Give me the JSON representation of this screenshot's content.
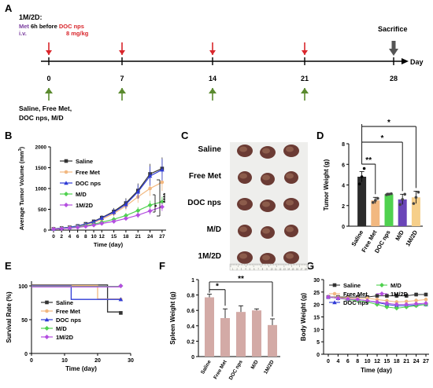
{
  "panel_labels": [
    "A",
    "B",
    "C",
    "D",
    "E",
    "F",
    "G"
  ],
  "timeline": {
    "regimen": "1M/2D:",
    "met": "Met",
    "before": "6h before",
    "doc": "DOC nps",
    "route": "i.v.",
    "dose": "8 mg/kg",
    "sacrifice": "Sacrifice",
    "axis_label": "Day",
    "days": [
      "0",
      "7",
      "14",
      "21",
      "28"
    ],
    "groups_line1": "Saline, Free Met,",
    "groups_line2": "DOC nps, M/D",
    "colors": {
      "injection": "#d9262c",
      "dosing": "#5a8a2e",
      "sacrifice": "#555555",
      "met": "#7b3fa0",
      "doc": "#d9262c"
    }
  },
  "series_colors": {
    "Saline": "#333333",
    "Free Met": "#f2b880",
    "DOC nps": "#2f3bd6",
    "M/D": "#4fd14f",
    "1M/2D": "#b44ee0"
  },
  "photo": {
    "rows": [
      "Saline",
      "Free Met",
      "DOC nps",
      "M/D",
      "1M/2D"
    ],
    "ruler_numbers": [
      "1",
      "2",
      "3",
      "4",
      "5",
      "6",
      "7",
      "8",
      "9",
      "10",
      "11",
      "12",
      "13",
      "14",
      "15",
      "16",
      "17",
      "18"
    ]
  },
  "chart_data": [
    {
      "panel": "B",
      "type": "line",
      "xlabel": "Time (day)",
      "ylabel": "Average Tumor Volume (mm",
      "ylabel_sup": "3",
      "ylabel_end": ")",
      "x": [
        0,
        2,
        4,
        6,
        8,
        10,
        12,
        15,
        18,
        21,
        24,
        27
      ],
      "ylim": [
        0,
        2000
      ],
      "yticks": [
        0,
        500,
        1000,
        1500,
        2000
      ],
      "series": [
        {
          "name": "Saline",
          "values": [
            30,
            50,
            70,
            100,
            150,
            210,
            300,
            450,
            650,
            950,
            1350,
            1480
          ]
        },
        {
          "name": "Free Met",
          "values": [
            30,
            45,
            65,
            90,
            130,
            180,
            260,
            400,
            580,
            800,
            1000,
            1150
          ]
        },
        {
          "name": "DOC nps",
          "values": [
            30,
            50,
            70,
            100,
            145,
            200,
            290,
            430,
            620,
            920,
            1300,
            1450
          ]
        },
        {
          "name": "M/D",
          "values": [
            25,
            40,
            55,
            75,
            105,
            140,
            190,
            260,
            350,
            470,
            600,
            680
          ]
        },
        {
          "name": "1M/2D",
          "values": [
            25,
            35,
            50,
            65,
            90,
            120,
            160,
            210,
            280,
            360,
            460,
            560
          ]
        }
      ],
      "significance": [
        "*",
        "****"
      ]
    },
    {
      "panel": "D",
      "type": "bar",
      "ylabel": "Tumor Weight (g)",
      "categories": [
        "Saline",
        "Free Met",
        "DOC nps",
        "M/D",
        "1M/2D"
      ],
      "values": [
        4.8,
        2.5,
        3.1,
        2.6,
        2.8
      ],
      "errors": [
        0.5,
        0.3,
        0.1,
        0.5,
        0.6
      ],
      "colors": [
        "#2b2b2b",
        "#f2b880",
        "#4fd14f",
        "#6a45b8",
        "#f6cf8a"
      ],
      "points": [
        [
          4.1,
          4.8,
          5.6
        ],
        [
          2.3,
          2.5,
          2.7
        ],
        [
          3.05,
          3.1,
          3.15
        ],
        [
          2.1,
          2.6,
          3.1
        ],
        [
          2.2,
          2.8,
          3.3
        ]
      ],
      "ylim": [
        0,
        8
      ],
      "yticks": [
        0,
        2,
        4,
        6,
        8
      ],
      "significance": [
        "**",
        "*",
        "*"
      ]
    },
    {
      "panel": "E",
      "type": "line",
      "xlabel": "Time (day)",
      "ylabel": "Survival Rate (%)",
      "xlim": [
        0,
        30
      ],
      "xticks": [
        0,
        10,
        20,
        30
      ],
      "ylim": [
        0,
        100
      ],
      "yticks": [
        0,
        50,
        100
      ],
      "series": [
        {
          "name": "Saline",
          "steps": [
            [
              0,
              100
            ],
            [
              23,
              100
            ],
            [
              23,
              60
            ],
            [
              27,
              60
            ]
          ]
        },
        {
          "name": "Free Met",
          "steps": [
            [
              0,
              100
            ],
            [
              20,
              100
            ],
            [
              20,
              80
            ],
            [
              27,
              80
            ]
          ]
        },
        {
          "name": "DOC nps",
          "steps": [
            [
              0,
              100
            ],
            [
              12,
              100
            ],
            [
              12,
              80
            ],
            [
              27,
              80
            ]
          ]
        },
        {
          "name": "M/D",
          "steps": [
            [
              0,
              100
            ],
            [
              27,
              100
            ]
          ]
        },
        {
          "name": "1M/2D",
          "steps": [
            [
              0,
              100
            ],
            [
              27,
              100
            ]
          ]
        }
      ]
    },
    {
      "panel": "F",
      "type": "bar",
      "ylabel": "Spleen Weight (g)",
      "categories": [
        "Saline",
        "Free Met",
        "DOC nps",
        "M/D",
        "1M/2D"
      ],
      "values": [
        0.77,
        0.5,
        0.58,
        0.6,
        0.41
      ],
      "errors": [
        0.04,
        0.12,
        0.08,
        0.02,
        0.08
      ],
      "color": "#d3aaa6",
      "ylim": [
        0,
        1.0
      ],
      "yticks": [
        0,
        0.2,
        0.4,
        0.6,
        0.8,
        1.0
      ],
      "significance": [
        "*",
        "**"
      ]
    },
    {
      "panel": "G",
      "type": "line",
      "xlabel": "Time (day)",
      "ylabel": "Body Weight (g)",
      "x": [
        0,
        4,
        6,
        8,
        10,
        12,
        15,
        18,
        21,
        24,
        27
      ],
      "ylim": [
        0,
        30
      ],
      "yticks": [
        0,
        5,
        10,
        15,
        20,
        25,
        30
      ],
      "series": [
        {
          "name": "Saline",
          "values": [
            23,
            23,
            23,
            23,
            23,
            23.5,
            23.5,
            23.5,
            23.5,
            24,
            24
          ]
        },
        {
          "name": "Free Met",
          "values": [
            23,
            22.8,
            22.6,
            22.4,
            22.5,
            22,
            21.5,
            21,
            21.2,
            21.6,
            22
          ]
        },
        {
          "name": "DOC nps",
          "values": [
            23,
            22.5,
            22.2,
            22,
            21.5,
            20.8,
            20,
            19.5,
            19.5,
            19.8,
            20
          ]
        },
        {
          "name": "M/D",
          "values": [
            23,
            22.5,
            22,
            21.5,
            21,
            20,
            19,
            18.5,
            19,
            19.5,
            20
          ]
        },
        {
          "name": "1M/2D",
          "values": [
            23,
            22.5,
            22.2,
            22,
            21.5,
            21,
            20.5,
            20,
            20,
            20.3,
            20.5
          ]
        }
      ]
    }
  ]
}
